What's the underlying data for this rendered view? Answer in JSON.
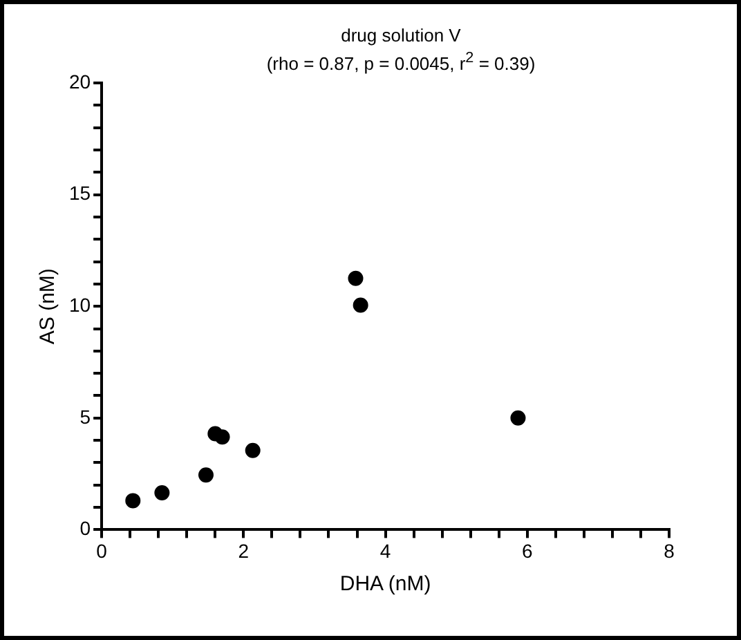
{
  "chart_data": {
    "type": "scatter",
    "title": "drug solution V",
    "subtitle": "(rho = 0.87, p = 0.0045, r$^{2}$ = 0.39)",
    "xlabel": "DHA (nM)",
    "ylabel": "AS (nM)",
    "x": [
      0.44,
      0.85,
      1.47,
      1.6,
      1.7,
      2.13,
      3.58,
      3.65,
      5.87
    ],
    "series": [
      {
        "color": "#000000",
        "values": [
          1.3,
          1.65,
          2.45,
          4.3,
          4.15,
          3.55,
          11.25,
          10.05,
          5.0
        ]
      }
    ],
    "xlim": [
      0,
      8
    ],
    "xticks": [
      0,
      {
        "value": 0.4,
        "label": null
      },
      {
        "value": 0.8,
        "label": null
      },
      {
        "value": 1.2,
        "label": null
      },
      {
        "value": 1.6,
        "label": null
      },
      2,
      {
        "value": 2.4,
        "label": null
      },
      {
        "value": 2.8,
        "label": null
      },
      {
        "value": 3.2,
        "label": null
      },
      {
        "value": 3.6,
        "label": null
      },
      4,
      {
        "value": 4.4,
        "label": null
      },
      {
        "value": 4.8,
        "label": null
      },
      {
        "value": 5.2,
        "label": null
      },
      {
        "value": 5.6,
        "label": null
      },
      6,
      {
        "value": 6.4,
        "label": null
      },
      {
        "value": 6.8,
        "label": null
      },
      {
        "value": 7.2,
        "label": null
      },
      {
        "value": 7.6,
        "label": null
      },
      8
    ],
    "ylim": [
      0,
      20
    ],
    "yticks": [
      0,
      {
        "value": 1,
        "label": null
      },
      {
        "value": 2,
        "label": null
      },
      {
        "value": 3,
        "label": null
      },
      {
        "value": 4,
        "label": null
      },
      5,
      {
        "value": 6,
        "label": null
      },
      {
        "value": 7,
        "label": null
      },
      {
        "value": 8,
        "label": null
      },
      {
        "value": 9,
        "label": null
      },
      10,
      {
        "value": 11,
        "label": null
      },
      {
        "value": 12,
        "label": null
      },
      {
        "value": 13,
        "label": null
      },
      {
        "value": 14,
        "label": null
      },
      15,
      {
        "value": 16,
        "label": null
      },
      {
        "value": 17,
        "label": null
      },
      {
        "value": 18,
        "label": null
      },
      {
        "value": 19,
        "label": null
      },
      20
    ],
    "grid": false,
    "legend": false,
    "marker": "circle"
  }
}
